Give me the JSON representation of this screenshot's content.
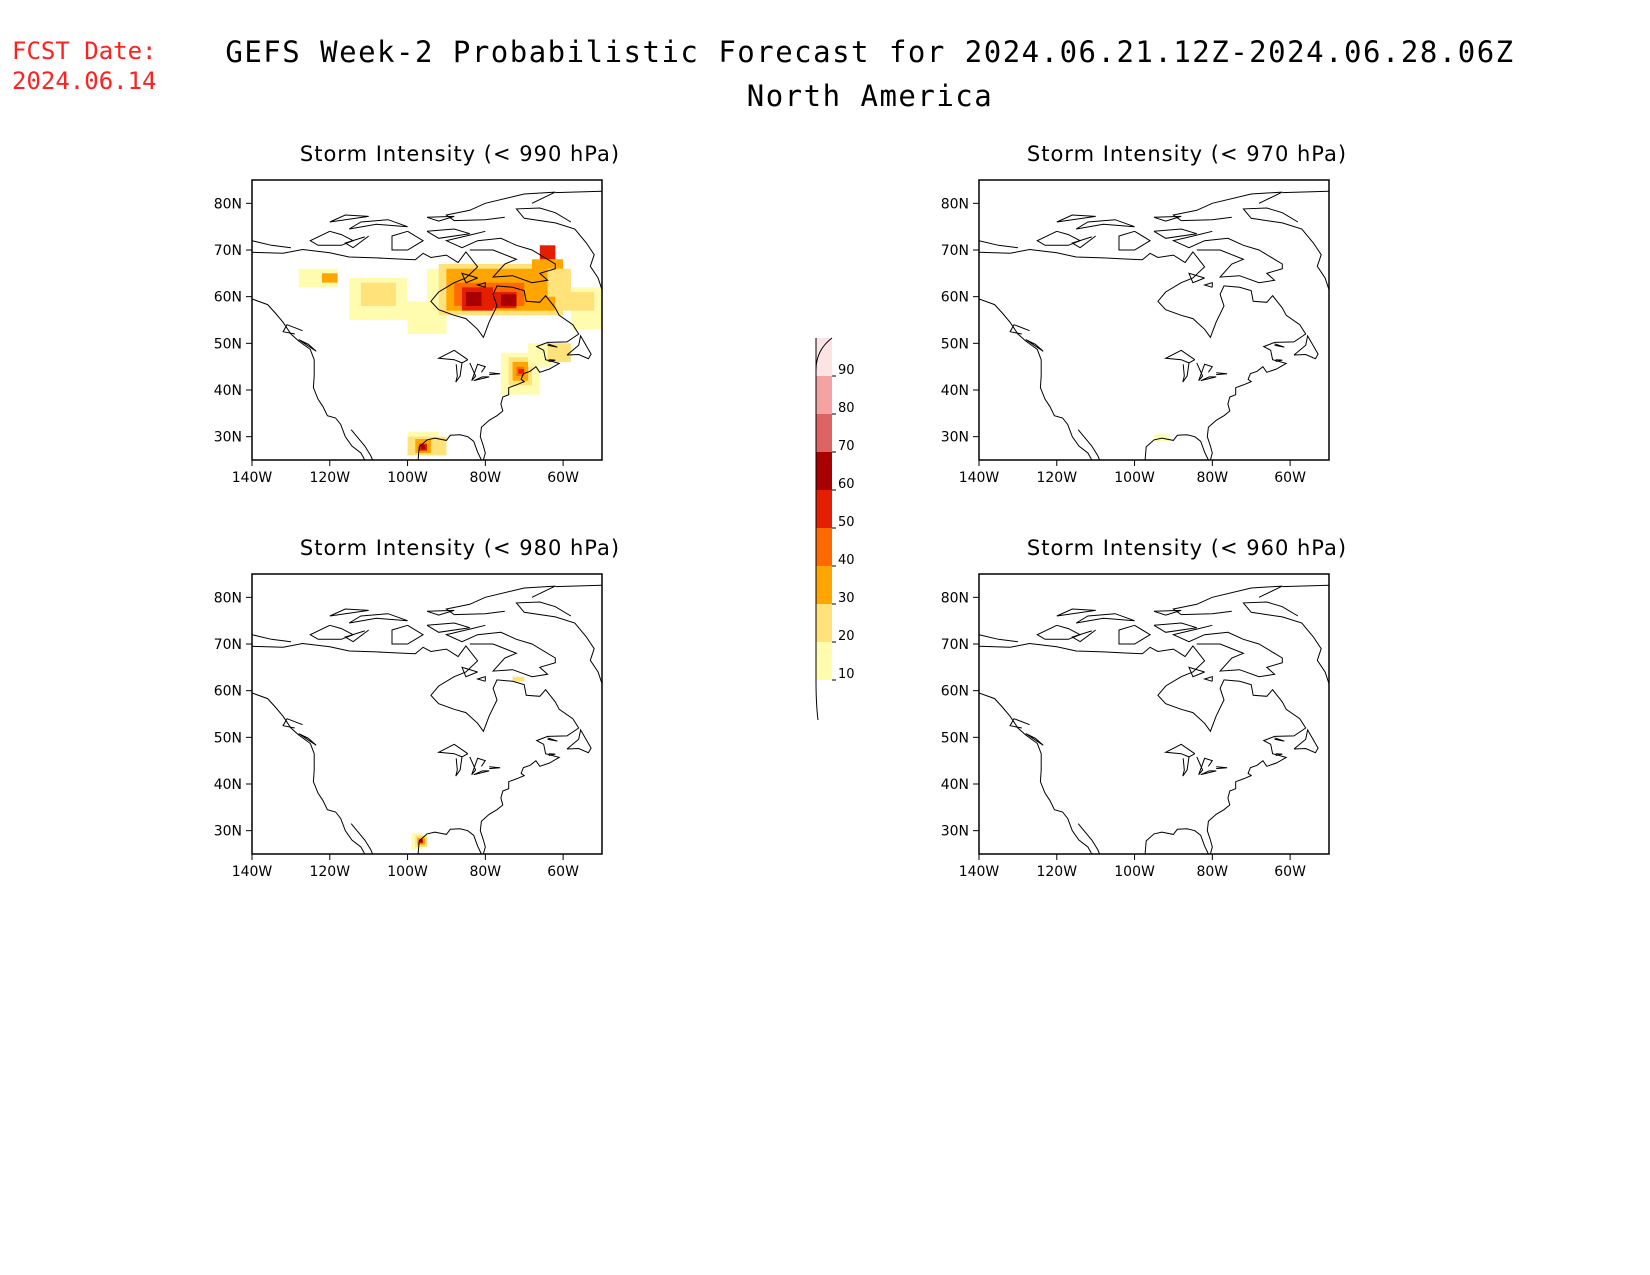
{
  "fcst": {
    "line1": "FCST Date:",
    "line2": "2024.06.14"
  },
  "title": {
    "line1": "GEFS Week-2 Probabilistic Forecast for 2024.06.21.12Z-2024.06.28.06Z",
    "line2": "North America"
  },
  "panels": [
    {
      "title": "Storm Intensity (< 990 hPa)"
    },
    {
      "title": "Storm Intensity (< 970 hPa)"
    },
    {
      "title": "Storm Intensity (< 980 hPa)"
    },
    {
      "title": "Storm Intensity (< 960 hPa)"
    }
  ],
  "axes": {
    "lat_labels": [
      "80N",
      "70N",
      "60N",
      "50N",
      "40N",
      "30N"
    ],
    "lon_labels": [
      "140W",
      "120W",
      "100W",
      "80W",
      "60W"
    ]
  },
  "colorbar": {
    "levels": [
      "10",
      "20",
      "30",
      "40",
      "50",
      "60",
      "70",
      "80",
      "90"
    ],
    "colors": [
      "#fffcb0",
      "#ffe27a",
      "#ffa500",
      "#ff6a00",
      "#e61e00",
      "#a80000",
      "#de6464",
      "#f4a3a3",
      "#fde4e4"
    ]
  },
  "chart_data": {
    "type": "heatmap",
    "description_units": "probability (%)",
    "lon_range": [
      "140W",
      "50W"
    ],
    "lat_range": [
      "25N",
      "85N"
    ],
    "panels": [
      {
        "threshold": "990 hPa",
        "has_probability": true,
        "regions": [
          {
            "area": "western Canada",
            "max_prob": 30
          },
          {
            "area": "Hudson Bay / Quebec",
            "max_prob": 60
          },
          {
            "area": "US northeast coast",
            "max_prob": 50
          },
          {
            "area": "Gulf of Mexico",
            "max_prob": 60
          }
        ]
      },
      {
        "threshold": "970 hPa",
        "has_probability": true,
        "regions": [
          {
            "area": "Gulf of Mexico",
            "max_prob": 20
          }
        ]
      },
      {
        "threshold": "980 hPa",
        "has_probability": true,
        "regions": [
          {
            "area": "Gulf of Mexico",
            "max_prob": 60
          },
          {
            "area": "Hudson Strait",
            "max_prob": 20
          }
        ]
      },
      {
        "threshold": "960 hPa",
        "has_probability": false,
        "regions": []
      }
    ]
  }
}
